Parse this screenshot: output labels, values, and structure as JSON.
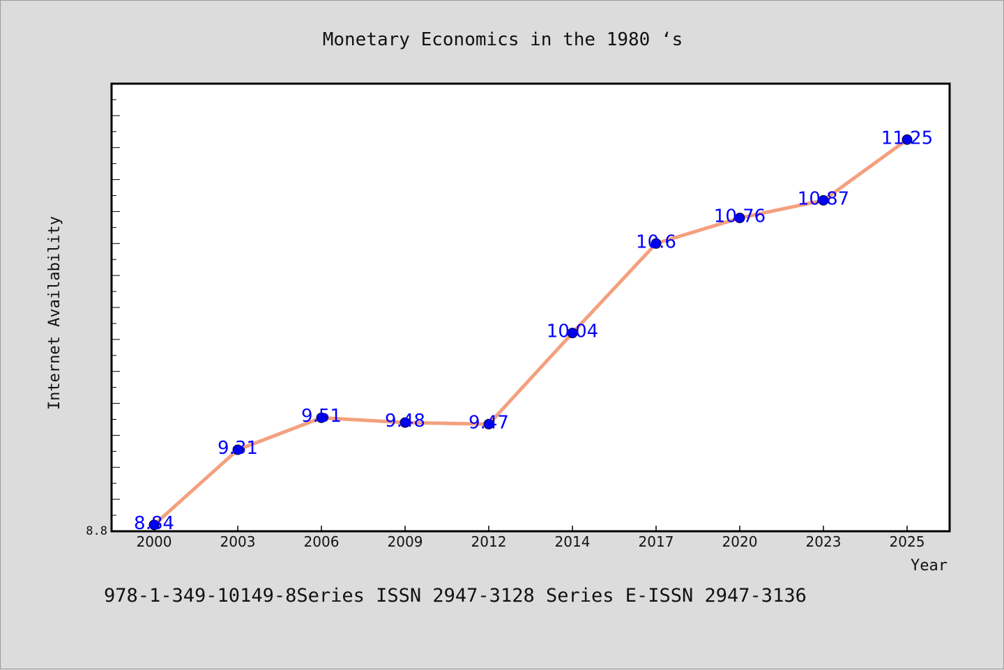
{
  "chart_data": {
    "type": "line",
    "title": "Monetary Economics in the 1980 ‘s",
    "xlabel": "Year",
    "ylabel": "Internet Availability",
    "categories": [
      "2000",
      "2003",
      "2006",
      "2009",
      "2012",
      "2014",
      "2017",
      "2020",
      "2023",
      "2025"
    ],
    "series": [
      {
        "values": [
          8.84,
          9.31,
          9.51,
          9.48,
          9.47,
          10.04,
          10.6,
          10.76,
          10.87,
          11.25
        ]
      }
    ],
    "data_labels": [
      "8.84",
      "9.31",
      "9.51",
      "9.48",
      "9.47",
      "10.04",
      "10.6",
      "10.76",
      "10.87",
      "11.25"
    ],
    "ylim": [
      8.8,
      11.6
    ],
    "yticks_labeled": [
      "8.8"
    ],
    "grid": false,
    "legend": "none"
  },
  "footer_text": "978-1-349-10149-8Series ISSN 2947-3128 Series E-ISSN 2947-3136",
  "colors": {
    "background": "#dcdcdc",
    "plot_background": "#ffffff",
    "line": "#f4a07e",
    "marker": "#0000ee",
    "data_label": "#0000ff"
  }
}
